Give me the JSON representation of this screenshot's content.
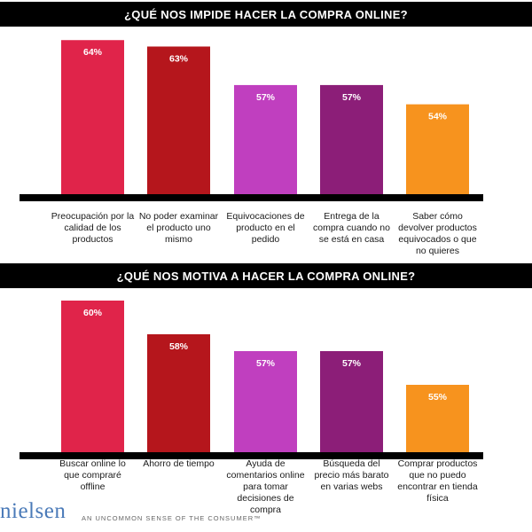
{
  "chart_data": [
    {
      "type": "bar",
      "title": "¿QUÉ NOS IMPIDE HACER LA COMPRA ONLINE?",
      "categories": [
        "Preocupación por la calidad de los productos",
        "No poder examinar el producto uno mismo",
        "Equivocaciones de producto en el pedido",
        "Entrega de la compra cuando no se está en casa",
        "Saber cómo devolver productos equivocados o que no quieres"
      ],
      "category_lines": [
        [
          "Preocupación por la",
          "calidad de los",
          "productos"
        ],
        [
          "No poder examinar",
          "el producto uno",
          "mismo"
        ],
        [
          "Equivocaciones de",
          "producto en el",
          "pedido"
        ],
        [
          "Entrega de la",
          "compra cuando no",
          "se está en casa"
        ],
        [
          "Saber cómo",
          "devolver productos",
          "equivocados o que",
          "no quieres"
        ]
      ],
      "values": [
        64,
        63,
        57,
        57,
        54
      ],
      "labels": [
        "64%",
        "63%",
        "57%",
        "57%",
        "54%"
      ],
      "colors": [
        "#e0244a",
        "#b5161c",
        "#c03fbf",
        "#8c1e78",
        "#f7931e"
      ],
      "xlabel": "",
      "ylabel": "",
      "ylim": [
        40,
        65
      ]
    },
    {
      "type": "bar",
      "title": "¿QUÉ NOS MOTIVA A HACER LA COMPRA ONLINE?",
      "categories": [
        "Buscar online lo que compraré offline",
        "Ahorro de tiempo",
        "Ayuda de comentarios online para tomar decisiones de compra",
        "Búsqueda del precio más barato en varias webs",
        "Comprar productos que no puedo encontrar en tienda física"
      ],
      "category_lines": [
        [
          "Buscar online lo",
          "que compraré",
          "offline"
        ],
        [
          "Ahorro de tiempo"
        ],
        [
          "Ayuda de",
          "comentarios online",
          "para tomar",
          "decisiones de",
          "compra"
        ],
        [
          "Búsqueda del",
          "precio más barato",
          "en varias webs"
        ],
        [
          "Comprar productos",
          "que no puedo",
          "encontrar en tienda",
          "física"
        ]
      ],
      "values": [
        60,
        58,
        57,
        57,
        55
      ],
      "labels": [
        "60%",
        "58%",
        "57%",
        "57%",
        "55%"
      ],
      "colors": [
        "#e0244a",
        "#b5161c",
        "#c03fbf",
        "#8c1e78",
        "#f7931e"
      ],
      "xlabel": "",
      "ylabel": "",
      "ylim": [
        51,
        61
      ]
    }
  ],
  "footer": {
    "logo": "nielsen",
    "tagline": "AN UNCOMMON SENSE OF THE CONSUMER™"
  }
}
